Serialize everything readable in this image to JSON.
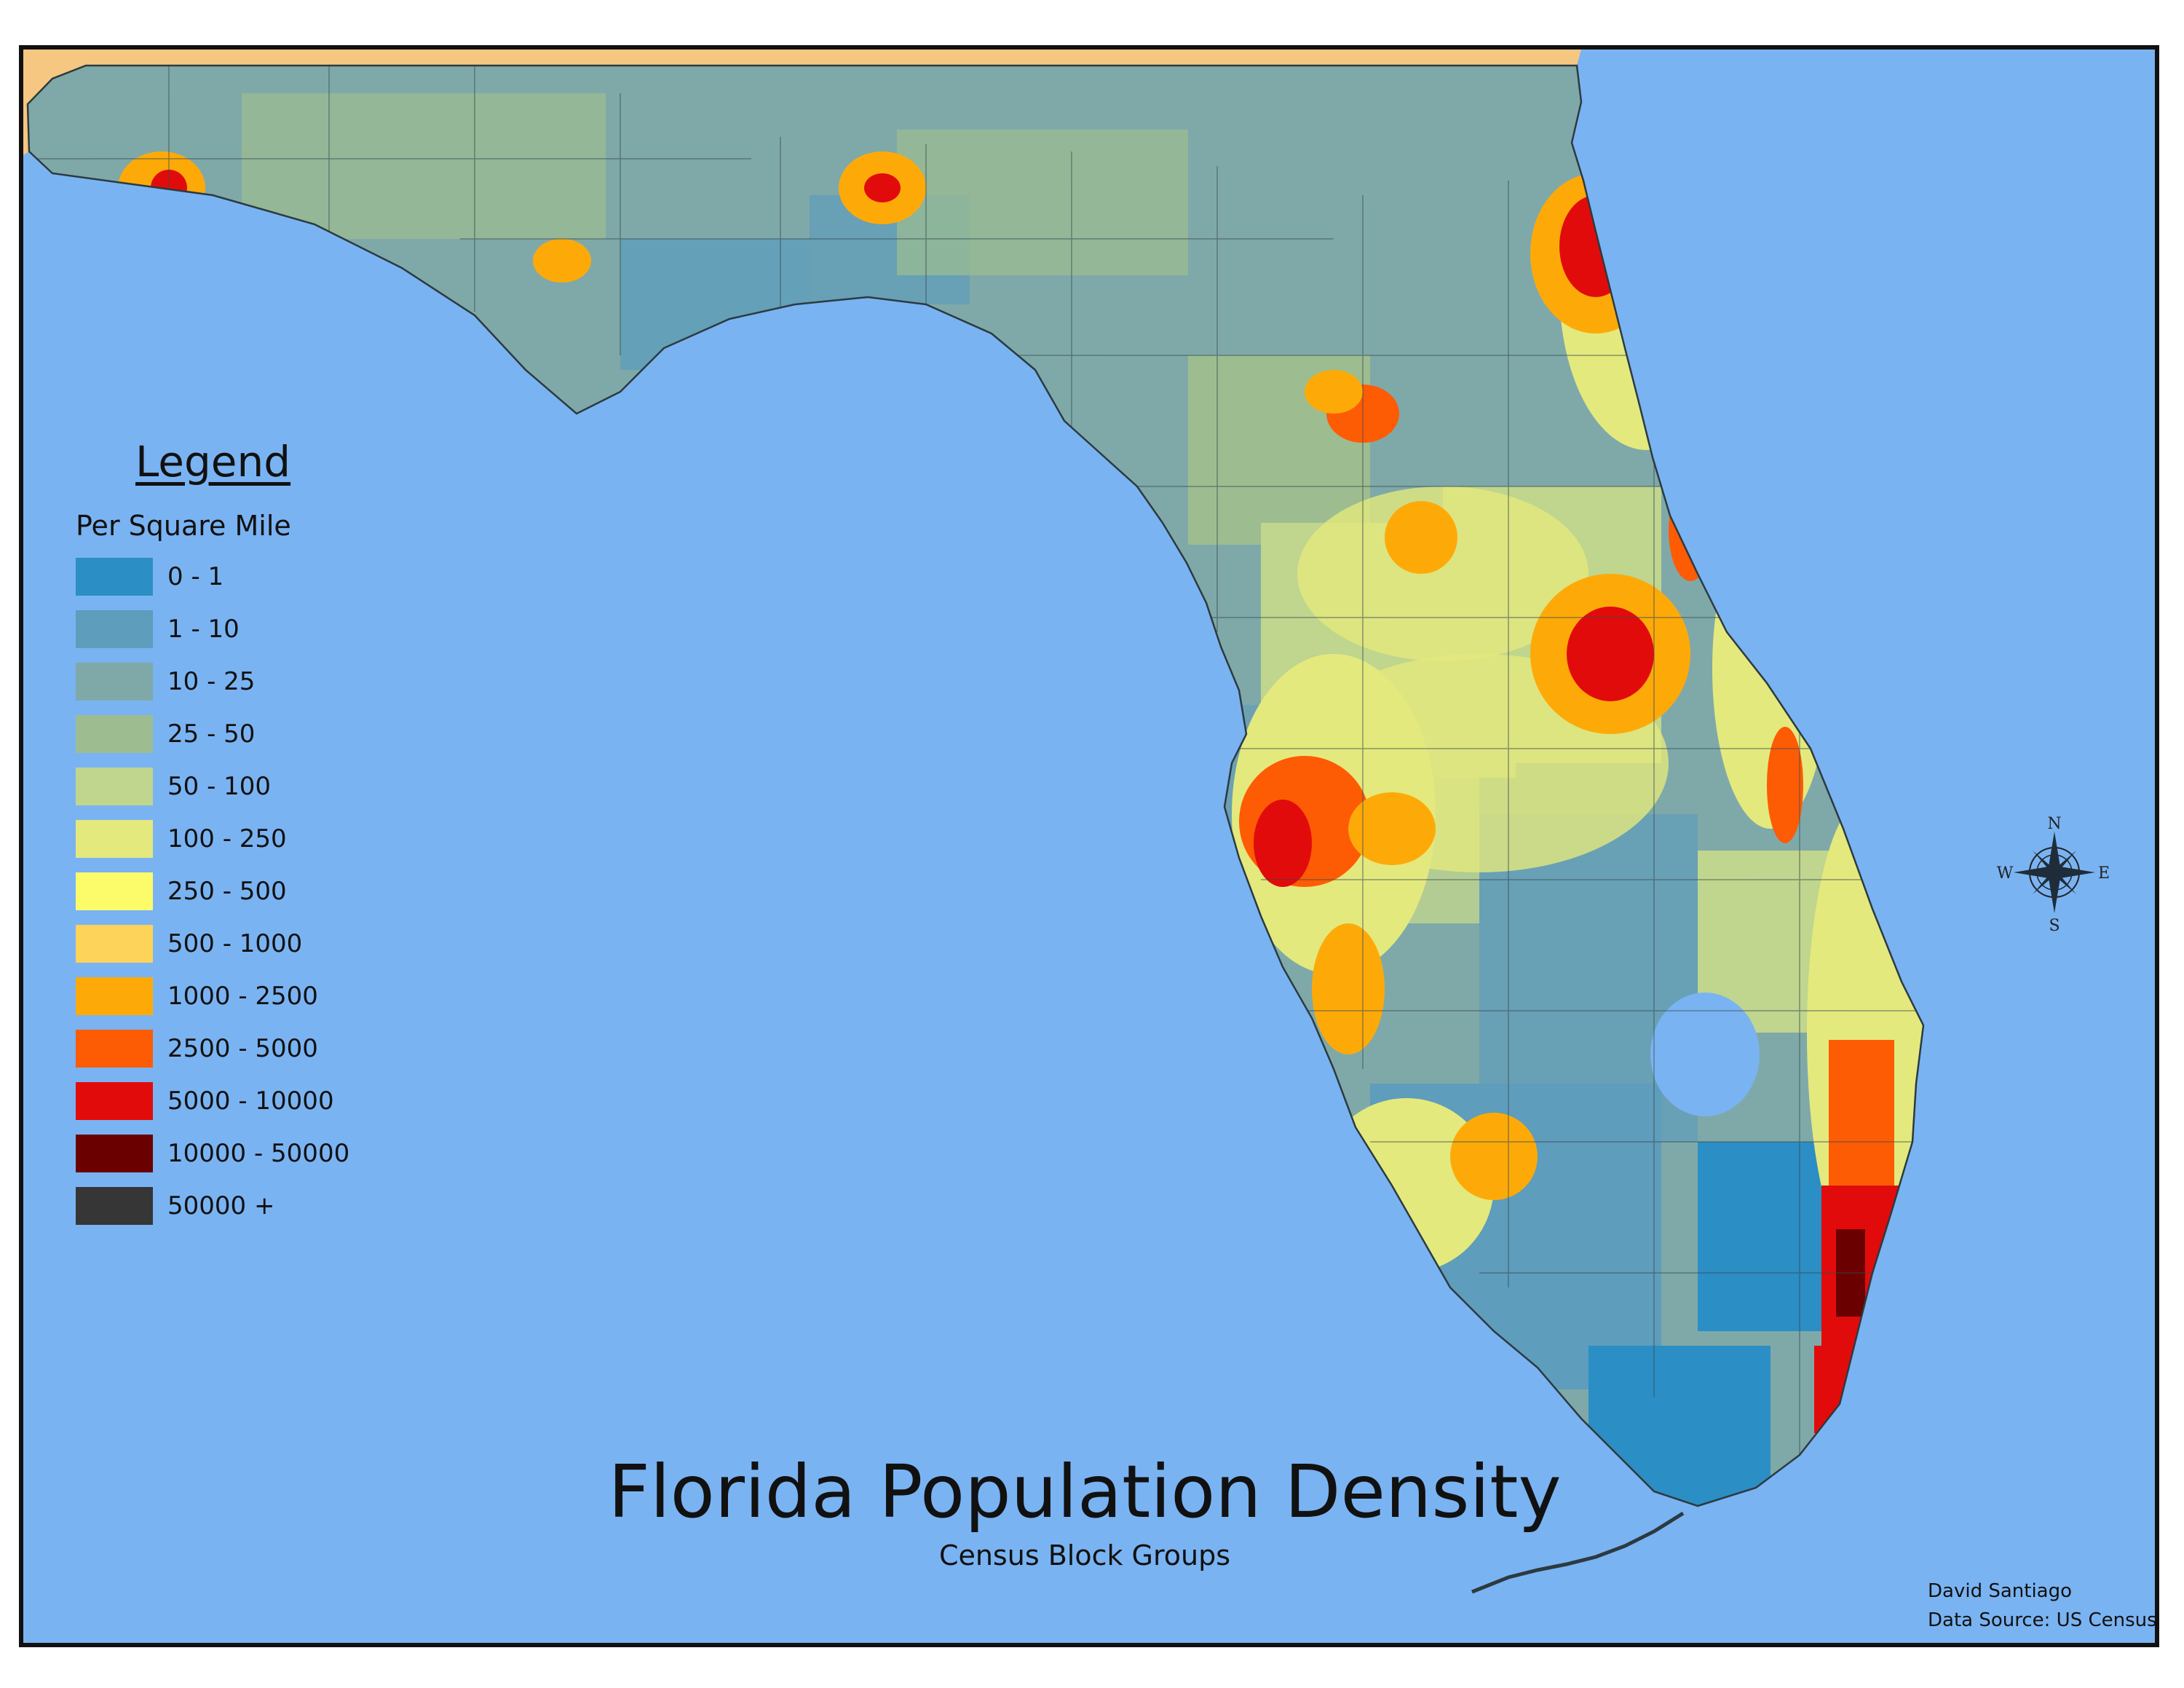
{
  "title": "Florida Population Density",
  "subtitle": "Census Block Groups",
  "legend": {
    "title": "Legend",
    "subtitle": "Per Square Mile",
    "items": [
      {
        "label": "0 - 1",
        "color": "#2b8ec4"
      },
      {
        "label": "1 - 10",
        "color": "#5e9dbb"
      },
      {
        "label": "10 - 25",
        "color": "#7fa9a9"
      },
      {
        "label": "25 - 50",
        "color": "#9dbd90"
      },
      {
        "label": "50 - 100",
        "color": "#c0d58e"
      },
      {
        "label": "100 - 250",
        "color": "#e4e97d"
      },
      {
        "label": "250 - 500",
        "color": "#fcfb6a"
      },
      {
        "label": "500 - 1000",
        "color": "#fdd35a"
      },
      {
        "label": "1000 - 2500",
        "color": "#fdaa09"
      },
      {
        "label": "2500 - 5000",
        "color": "#fe5b05"
      },
      {
        "label": "5000 - 10000",
        "color": "#e20b0b"
      },
      {
        "label": "10000 - 50000",
        "color": "#6b0000"
      },
      {
        "label": "50000 +",
        "color": "#363636"
      }
    ]
  },
  "compass": {
    "n": "N",
    "s": "S",
    "e": "E",
    "w": "W"
  },
  "credits": {
    "author": "David Santiago",
    "source": "Data Source: US Census"
  },
  "colors": {
    "water": "#7ab3f2",
    "neighbor_land": "#f6c780",
    "frame": "#111111",
    "county_lines": "#3a4a52"
  }
}
